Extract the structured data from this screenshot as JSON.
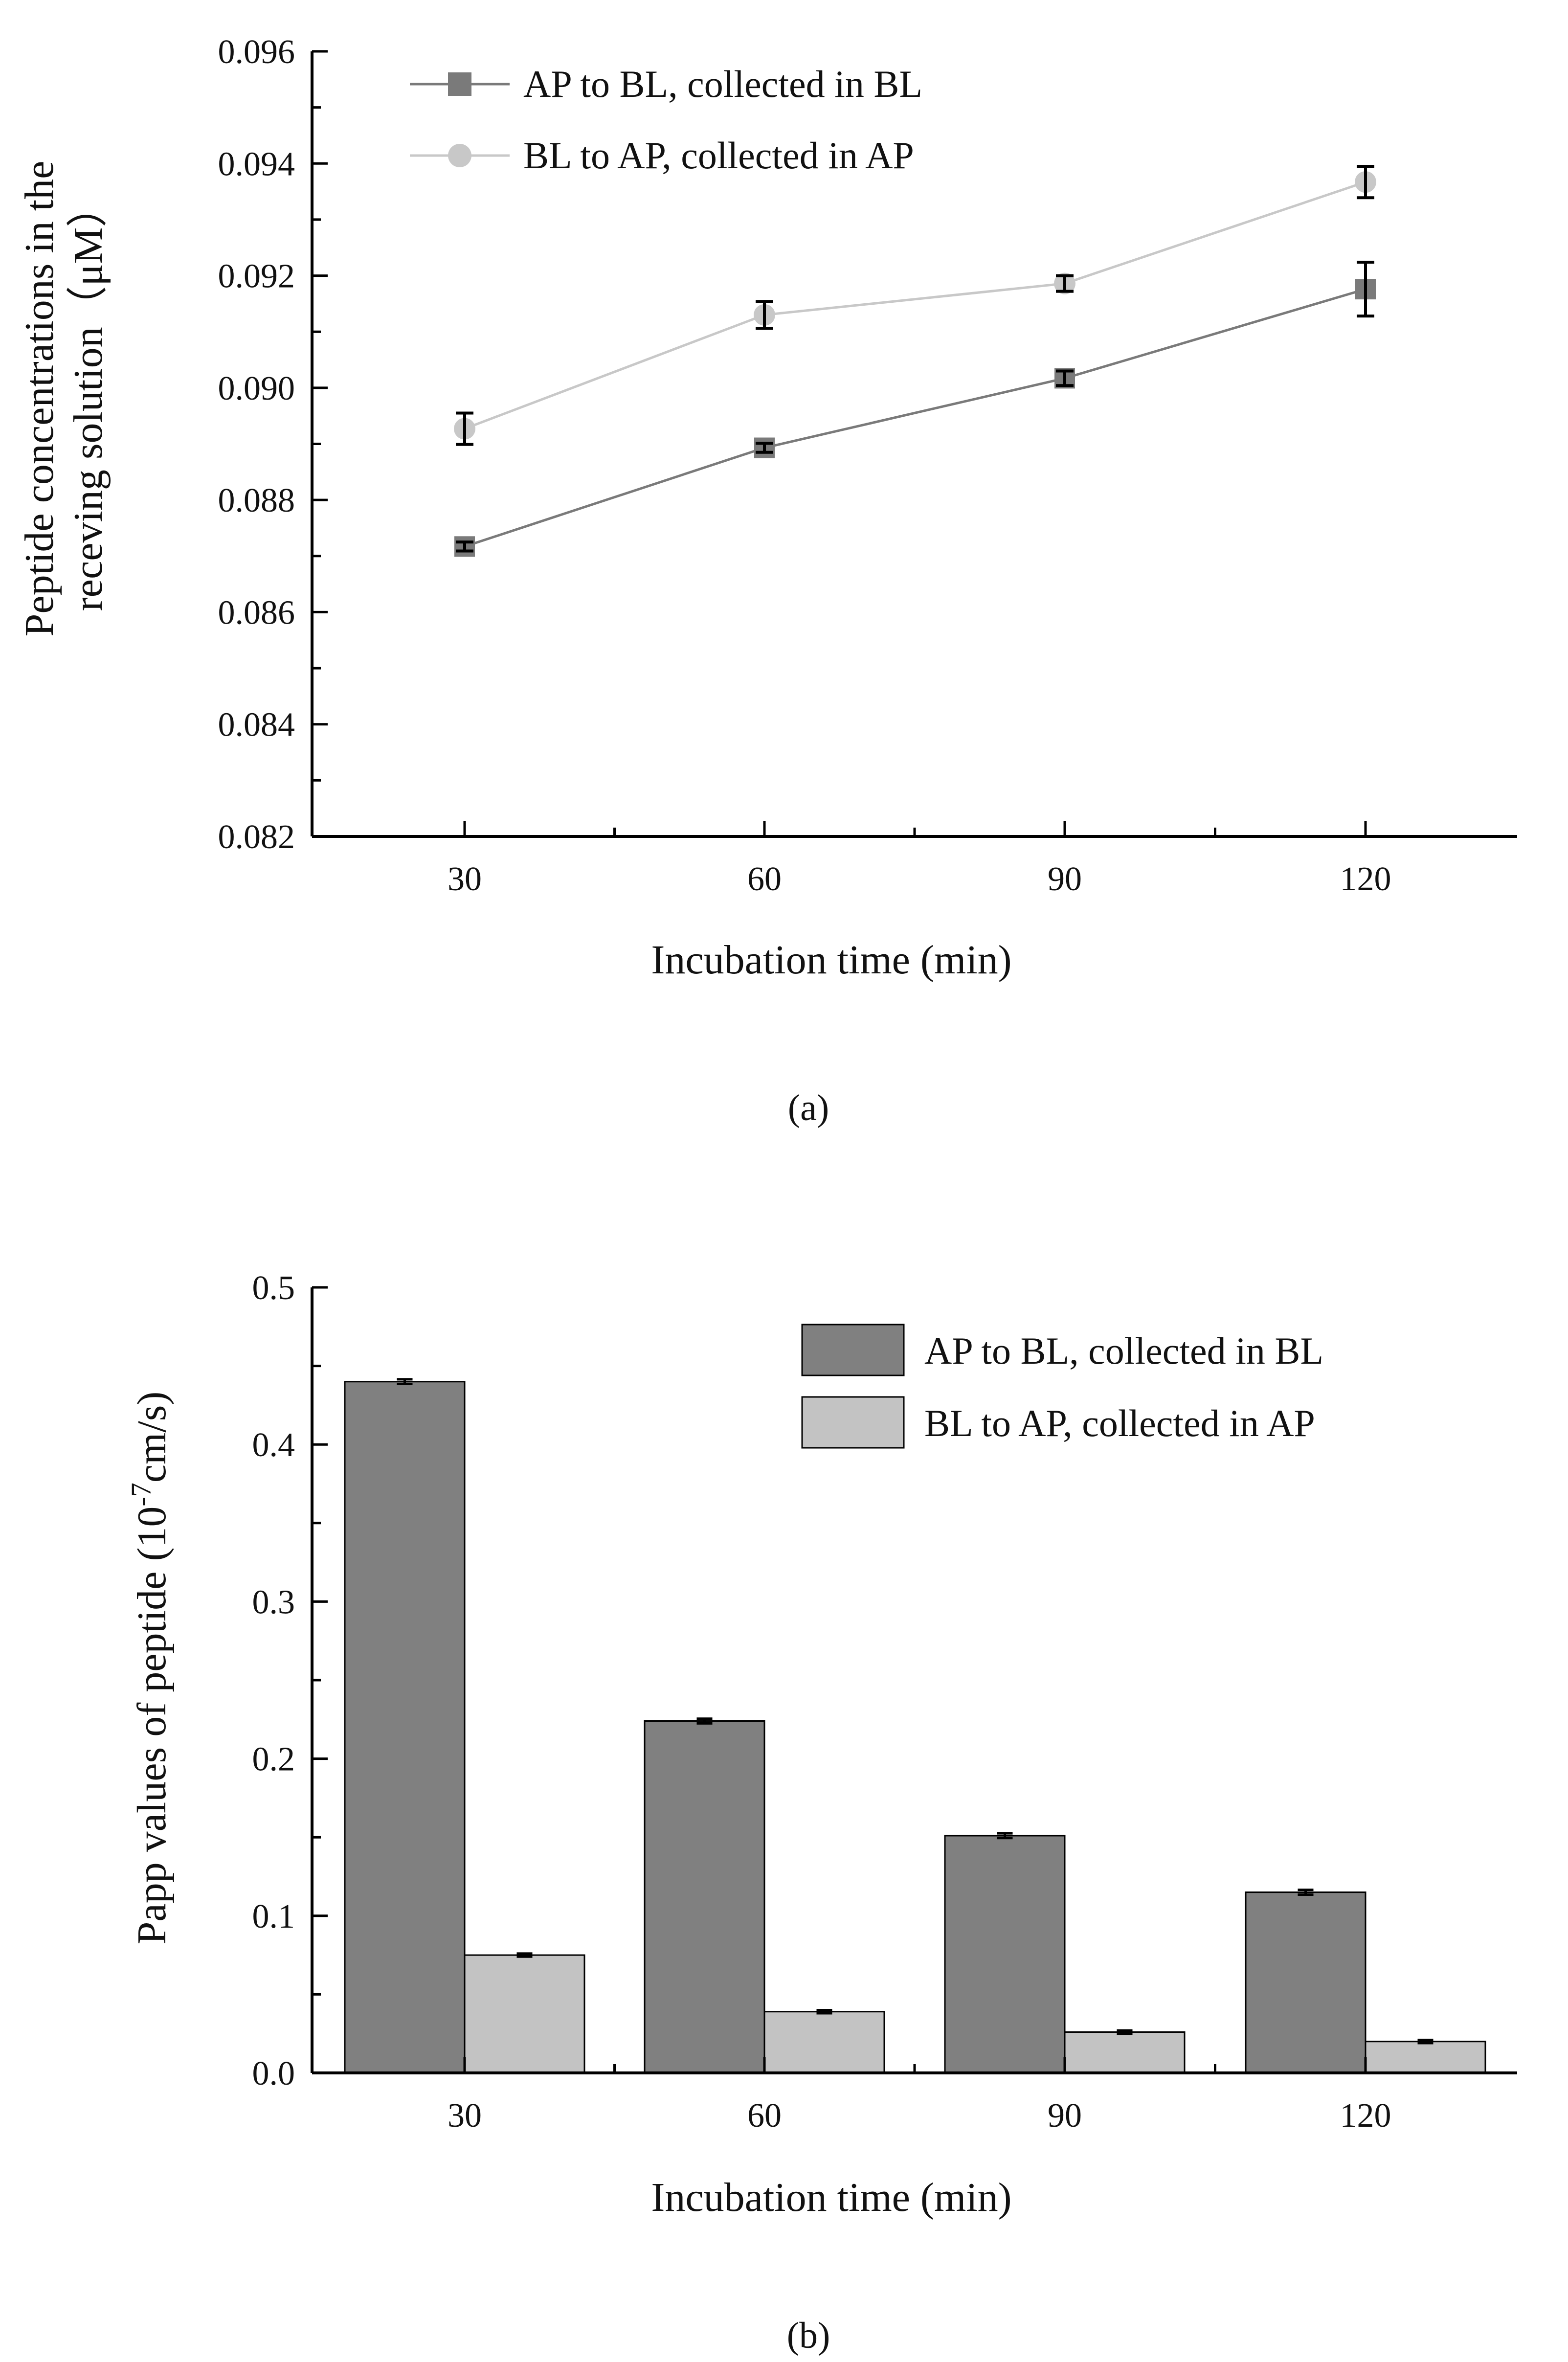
{
  "chart_data": [
    {
      "type": "line",
      "panel_label": "(a)",
      "xlabel": "Incubation time (min)",
      "ylabel_line1": "Peptide concentrations in the",
      "ylabel_line2": "receving solution（μM）",
      "categories": [
        "30",
        "60",
        "90",
        "120"
      ],
      "yticks": [
        "0.082",
        "0.084",
        "0.086",
        "0.088",
        "0.090",
        "0.092",
        "0.094",
        "0.096"
      ],
      "ylim": [
        0.082,
        0.096
      ],
      "legend_position": "top-left",
      "series": [
        {
          "name": "AP to BL, collected in BL",
          "marker": "square",
          "color": "#7a7a7a",
          "values": [
            0.08717,
            0.08893,
            0.09017,
            0.09176
          ],
          "errors": [
            8e-05,
            8e-05,
            0.00013,
            0.00048
          ]
        },
        {
          "name": "BL to AP, collected in AP",
          "marker": "circle",
          "color": "#c8c8c8",
          "values": [
            0.08927,
            0.0913,
            0.09186,
            0.09367
          ],
          "errors": [
            0.00028,
            0.00024,
            0.00014,
            0.00028
          ]
        }
      ]
    },
    {
      "type": "bar",
      "panel_label": "(b)",
      "xlabel": "Incubation time (min)",
      "ylabel_main": "Papp values of peptide (10",
      "ylabel_sup": "-7",
      "ylabel_tail": "cm/s)",
      "categories": [
        "30",
        "60",
        "90",
        "120"
      ],
      "yticks": [
        "0.0",
        "0.1",
        "0.2",
        "0.3",
        "0.4",
        "0.5"
      ],
      "ylim": [
        0,
        0.5
      ],
      "legend_position": "top-right",
      "series": [
        {
          "name": "AP to BL, collected in BL",
          "color": "#808080",
          "values": [
            0.44,
            0.224,
            0.151,
            0.115
          ],
          "errors": [
            0.0015,
            0.0015,
            0.0015,
            0.0015
          ]
        },
        {
          "name": "BL to AP, collected in AP",
          "color": "#c3c3c3",
          "values": [
            0.075,
            0.039,
            0.026,
            0.02
          ],
          "errors": [
            0.001,
            0.001,
            0.001,
            0.001
          ]
        }
      ]
    }
  ]
}
